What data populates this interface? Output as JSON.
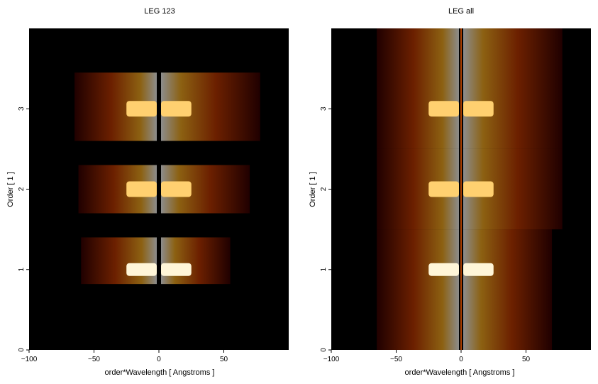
{
  "charts": [
    {
      "type": "heatmap",
      "title": "LEG 123",
      "xlabel": "order*Wavelength [ Angstroms ]",
      "ylabel": "Order [ 1 ]",
      "xlim": [
        -100,
        100
      ],
      "ylim": [
        0,
        4
      ],
      "xticks": [
        -100,
        -50,
        0,
        50
      ],
      "yticks": [
        0,
        1,
        2,
        3
      ],
      "colormap": "black-red-orange-yellow-white (hot)",
      "bands": [
        {
          "order": 1,
          "y_range": [
            0.82,
            1.4
          ],
          "x_min": -60,
          "x_max": 55,
          "intensity": "bright core near 0"
        },
        {
          "order": 2,
          "y_range": [
            1.7,
            2.3
          ],
          "x_min": -62,
          "x_max": 70,
          "intensity": "moderate"
        },
        {
          "order": 3,
          "y_range": [
            2.6,
            3.45
          ],
          "x_min": -65,
          "x_max": 78,
          "intensity": "moderate"
        }
      ]
    },
    {
      "type": "heatmap",
      "title": "LEG all",
      "xlabel": "order*Wavelength [ Angstroms ]",
      "ylabel": "Order [ 1 ]",
      "xlim": [
        -100,
        100
      ],
      "ylim": [
        0,
        4
      ],
      "xticks": [
        -100,
        -50,
        0,
        50
      ],
      "yticks": [
        0,
        1,
        2,
        3
      ],
      "colormap": "black-red-orange-yellow-white (hot)",
      "bands": [
        {
          "order": 1,
          "y_range": [
            0.0,
            1.5
          ],
          "x_min": -65,
          "x_max": 70,
          "intensity": "bright core near 0"
        },
        {
          "order": 2,
          "y_range": [
            1.5,
            2.5
          ],
          "x_min": -65,
          "x_max": 78,
          "intensity": "moderate"
        },
        {
          "order": 3,
          "y_range": [
            2.5,
            4.0
          ],
          "x_min": -65,
          "x_max": 78,
          "intensity": "moderate"
        }
      ]
    }
  ]
}
